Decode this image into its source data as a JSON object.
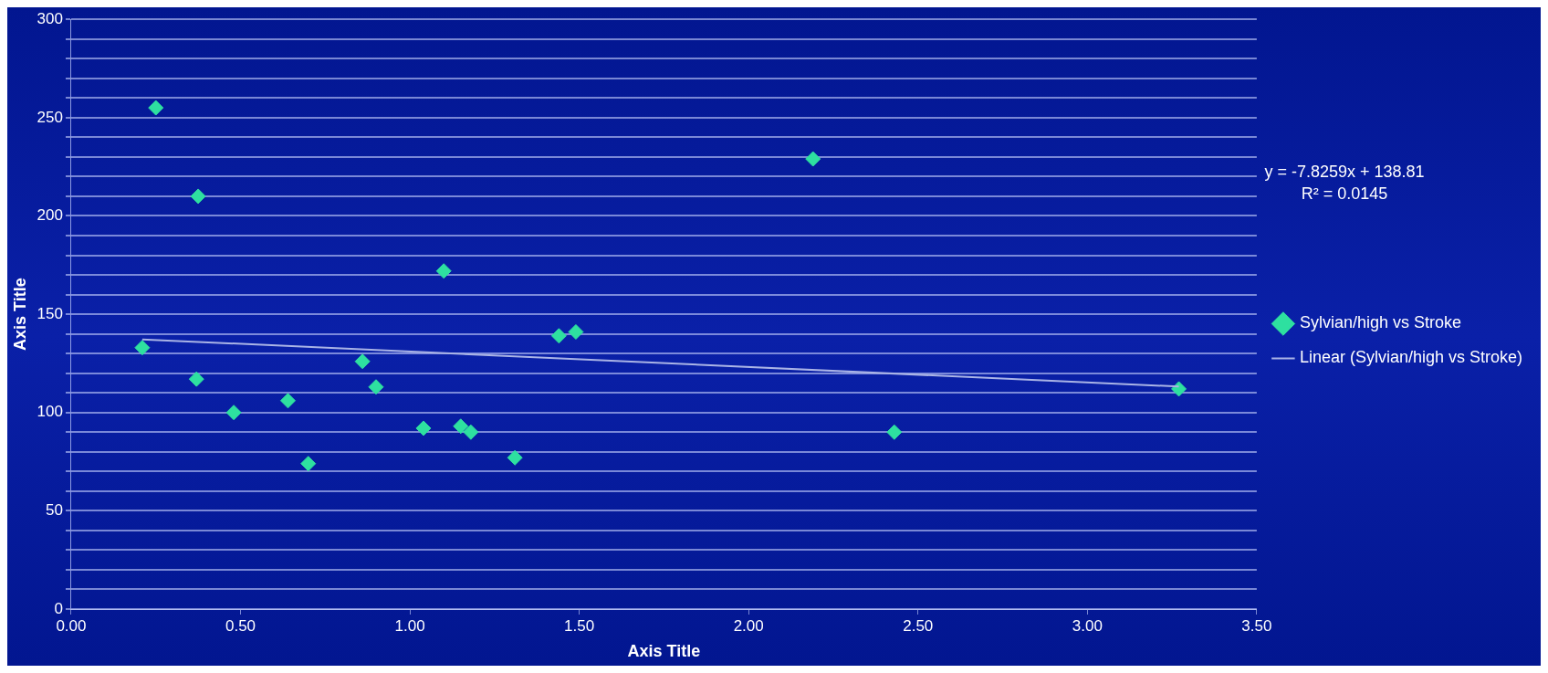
{
  "chart_data": {
    "type": "scatter",
    "xlabel": "Axis Title",
    "ylabel": "Axis Title",
    "annotations": [
      "y = -7.8259x + 138.81",
      "R² = 0.0145"
    ],
    "series": [
      {
        "name": "Sylvian/high vs Stroke",
        "color": "#2ee0a0",
        "marker": "diamond",
        "x": [
          0.21,
          0.25,
          0.375,
          0.37,
          0.48,
          0.64,
          0.7,
          0.86,
          0.9,
          1.04,
          1.1,
          1.15,
          1.18,
          1.31,
          1.44,
          1.49,
          2.19,
          2.43,
          3.27
        ],
        "values": [
          133,
          255,
          210,
          117,
          100,
          106,
          74,
          126,
          113,
          92,
          172,
          93,
          90,
          77,
          139,
          141,
          229,
          90,
          112
        ]
      },
      {
        "name": "Linear (Sylvian/high vs Stroke)",
        "type": "line",
        "color": "#aab4e6",
        "x": [
          0.21,
          3.27
        ],
        "values": [
          137.2,
          113.2
        ]
      }
    ],
    "grid": "y",
    "legend": "right",
    "xlim": [
      0,
      3.5
    ],
    "xticks": [
      {
        "value": 0,
        "label": "0.00"
      },
      {
        "value": 0.5,
        "label": "0.50"
      },
      {
        "value": 1,
        "label": "1.00"
      },
      {
        "value": 1.5,
        "label": "1.50"
      },
      {
        "value": 2,
        "label": "2.00"
      },
      {
        "value": 2.5,
        "label": "2.50"
      },
      {
        "value": 3,
        "label": "3.00"
      },
      {
        "value": 3.5,
        "label": "3.50"
      }
    ],
    "ylim": [
      0,
      300
    ],
    "yticks": [
      0,
      {
        "value": 10,
        "label": null
      },
      {
        "value": 20,
        "label": null
      },
      {
        "value": 30,
        "label": null
      },
      {
        "value": 40,
        "label": null
      },
      50,
      {
        "value": 60,
        "label": null
      },
      {
        "value": 70,
        "label": null
      },
      {
        "value": 80,
        "label": null
      },
      {
        "value": 90,
        "label": null
      },
      100,
      {
        "value": 110,
        "label": null
      },
      {
        "value": 120,
        "label": null
      },
      {
        "value": 130,
        "label": null
      },
      {
        "value": 140,
        "label": null
      },
      150,
      {
        "value": 160,
        "label": null
      },
      {
        "value": 170,
        "label": null
      },
      {
        "value": 180,
        "label": null
      },
      {
        "value": 190,
        "label": null
      },
      200,
      {
        "value": 210,
        "label": null
      },
      {
        "value": 220,
        "label": null
      },
      {
        "value": 230,
        "label": null
      },
      {
        "value": 240,
        "label": null
      },
      250,
      {
        "value": 260,
        "label": null
      },
      {
        "value": 270,
        "label": null
      },
      {
        "value": 280,
        "label": null
      },
      {
        "value": 290,
        "label": null
      },
      300
    ]
  }
}
